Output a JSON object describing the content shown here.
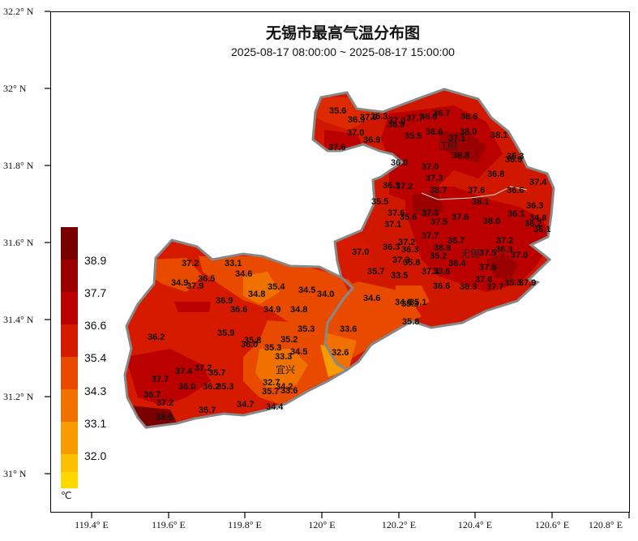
{
  "title": "无锡市最高气温分布图",
  "subtitle": "2025-08-17 08:00:00 ~ 2025-08-17 15:00:00",
  "axes": {
    "lat_labels": [
      "32.2° N",
      "32° N",
      "31.8° N",
      "31.6° N",
      "31.4° N",
      "31.2° N",
      "31° N"
    ],
    "lon_labels": [
      "119.4° E",
      "119.6° E",
      "119.8° E",
      "120° E",
      "120.2° E",
      "120.4° E",
      "120.6° E",
      "120.8° E"
    ]
  },
  "legend": {
    "unit": "℃",
    "labels": [
      "38.9",
      "37.7",
      "36.6",
      "35.4",
      "34.3",
      "33.1",
      "32.0"
    ],
    "colors": [
      "#7a0000",
      "#9a0000",
      "#bb0000",
      "#d61a00",
      "#e84a00",
      "#f07000",
      "#f79c00",
      "#fbc000",
      "#ffd800"
    ]
  },
  "cities": [
    "江阴",
    "无锡",
    "宜兴"
  ],
  "station_values": [
    "35.6",
    "36.9",
    "37.0",
    "35.3",
    "37.0",
    "37.7",
    "36.7",
    "36.6",
    "36.9",
    "36.6",
    "35.5",
    "36.6",
    "37.1",
    "38.0",
    "38.1",
    "37.0",
    "36.9",
    "37.6",
    "36.8",
    "35.3",
    "36.9",
    "36.0",
    "37.0",
    "36.8",
    "37.4",
    "37.3",
    "36.3",
    "37.2",
    "38.7",
    "37.6",
    "36.6",
    "35.5",
    "38.1",
    "36.3",
    "37.6",
    "35.6",
    "37.3",
    "36.1",
    "34.8",
    "37.1",
    "37.5",
    "37.6",
    "38.0",
    "36.2",
    "36.1",
    "37.7",
    "36.7",
    "37.2",
    "37.0",
    "36.3",
    "37.2",
    "36.3",
    "38.8",
    "37.5",
    "36.3",
    "37.0",
    "37.3",
    "35.8",
    "35.2",
    "36.4",
    "37.6",
    "35.7",
    "33.5",
    "37.3",
    "33.6",
    "37.6",
    "37.9",
    "36.6",
    "36.3",
    "37.7",
    "35.3",
    "34.6",
    "34.8",
    "35.1",
    "35.3",
    "35.8",
    "33.6",
    "37.2",
    "33.1",
    "34.6",
    "34.9",
    "37.9",
    "36.5",
    "34.8",
    "35.4",
    "34.5",
    "34.0",
    "36.9",
    "36.6",
    "34.9",
    "34.8",
    "35.3",
    "36.2",
    "35.9",
    "35.8",
    "36.0",
    "35.2",
    "35.3",
    "34.5",
    "33.3",
    "32.6",
    "37.4",
    "37.2",
    "35.7",
    "37.7",
    "36.0",
    "36.2",
    "35.3",
    "32.7",
    "36.7",
    "34.2",
    "35.7",
    "33.6",
    "37.2",
    "34.7",
    "34.4",
    "38.9",
    "35.7"
  ]
}
